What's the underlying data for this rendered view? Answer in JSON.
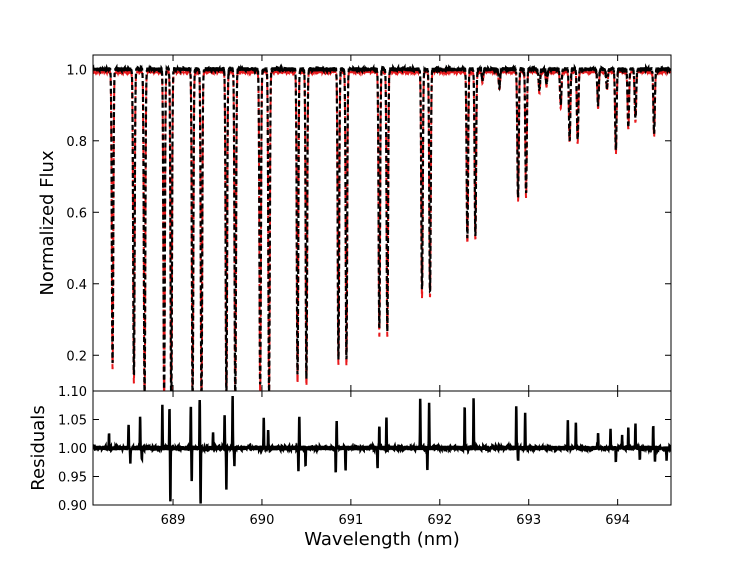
{
  "chart_data": [
    {
      "type": "line",
      "panel": "top",
      "xlabel": "",
      "ylabel": "Normalized Flux",
      "xlim": [
        688.1,
        694.6
      ],
      "ylim": [
        0.1,
        1.04
      ],
      "yticks": [
        1.0,
        0.8,
        0.6,
        0.4,
        0.2
      ],
      "ytick_labels": [
        "1.0",
        "0.8",
        "0.6",
        "0.4",
        "0.2"
      ],
      "grid": false,
      "series": [
        {
          "style": "solid",
          "color": "#000000"
        },
        {
          "style": "dashed",
          "color": "#e8191c"
        }
      ],
      "absorption_lines": [
        {
          "x": 688.32,
          "depth": 0.83
        },
        {
          "x": 688.56,
          "depth": 0.87
        },
        {
          "x": 688.68,
          "depth": 0.92
        },
        {
          "x": 688.9,
          "depth": 0.92
        },
        {
          "x": 688.98,
          "depth": 0.95
        },
        {
          "x": 689.22,
          "depth": 0.93
        },
        {
          "x": 689.32,
          "depth": 0.94
        },
        {
          "x": 689.6,
          "depth": 0.92
        },
        {
          "x": 689.7,
          "depth": 0.94
        },
        {
          "x": 689.98,
          "depth": 0.9
        },
        {
          "x": 690.08,
          "depth": 0.91
        },
        {
          "x": 690.4,
          "depth": 0.87
        },
        {
          "x": 690.5,
          "depth": 0.88
        },
        {
          "x": 690.86,
          "depth": 0.82
        },
        {
          "x": 690.95,
          "depth": 0.82
        },
        {
          "x": 691.32,
          "depth": 0.74
        },
        {
          "x": 691.41,
          "depth": 0.74
        },
        {
          "x": 691.8,
          "depth": 0.63
        },
        {
          "x": 691.89,
          "depth": 0.63
        },
        {
          "x": 692.31,
          "depth": 0.48
        },
        {
          "x": 692.4,
          "depth": 0.47
        },
        {
          "x": 692.88,
          "depth": 0.36
        },
        {
          "x": 692.97,
          "depth": 0.35
        },
        {
          "x": 693.46,
          "depth": 0.2
        },
        {
          "x": 693.55,
          "depth": 0.2
        },
        {
          "x": 693.78,
          "depth": 0.1
        },
        {
          "x": 693.98,
          "depth": 0.23
        },
        {
          "x": 694.12,
          "depth": 0.16
        },
        {
          "x": 694.2,
          "depth": 0.14
        },
        {
          "x": 694.41,
          "depth": 0.18
        },
        {
          "x": 692.67,
          "depth": 0.05
        },
        {
          "x": 692.48,
          "depth": 0.03
        },
        {
          "x": 693.12,
          "depth": 0.06
        },
        {
          "x": 693.2,
          "depth": 0.04
        },
        {
          "x": 693.36,
          "depth": 0.1
        },
        {
          "x": 693.88,
          "depth": 0.05
        }
      ]
    },
    {
      "type": "line",
      "panel": "bottom",
      "xlabel": "Wavelength (nm)",
      "ylabel": "Residuals",
      "xlim": [
        688.1,
        694.6
      ],
      "ylim": [
        0.9,
        1.1
      ],
      "xticks": [
        689,
        690,
        691,
        692,
        693,
        694
      ],
      "xtick_labels": [
        "689",
        "690",
        "691",
        "692",
        "693",
        "694"
      ],
      "yticks": [
        1.1,
        1.05,
        1.0,
        0.95,
        0.9
      ],
      "ytick_labels": [
        "1.10",
        "1.05",
        "1.00",
        "0.95",
        "0.90"
      ],
      "baseline": 1.0,
      "grid": false,
      "series": [
        {
          "style": "solid",
          "color": "#000000"
        }
      ],
      "spikes": [
        {
          "x": 688.28,
          "v": 1.025
        },
        {
          "x": 688.5,
          "v": 1.04
        },
        {
          "x": 688.52,
          "v": 0.975
        },
        {
          "x": 688.63,
          "v": 1.055
        },
        {
          "x": 688.65,
          "v": 0.98
        },
        {
          "x": 688.88,
          "v": 1.075
        },
        {
          "x": 688.96,
          "v": 1.07
        },
        {
          "x": 688.97,
          "v": 0.905
        },
        {
          "x": 689.2,
          "v": 1.075
        },
        {
          "x": 689.21,
          "v": 0.945
        },
        {
          "x": 689.3,
          "v": 1.085
        },
        {
          "x": 689.31,
          "v": 0.9
        },
        {
          "x": 689.45,
          "v": 1.025
        },
        {
          "x": 689.58,
          "v": 1.06
        },
        {
          "x": 689.6,
          "v": 0.93
        },
        {
          "x": 689.67,
          "v": 1.09
        },
        {
          "x": 689.69,
          "v": 0.97
        },
        {
          "x": 690.02,
          "v": 1.05
        },
        {
          "x": 690.07,
          "v": 1.03
        },
        {
          "x": 690.42,
          "v": 1.055
        },
        {
          "x": 690.41,
          "v": 0.96
        },
        {
          "x": 690.49,
          "v": 0.97
        },
        {
          "x": 690.84,
          "v": 1.045
        },
        {
          "x": 690.83,
          "v": 0.955
        },
        {
          "x": 690.94,
          "v": 0.96
        },
        {
          "x": 691.3,
          "v": 0.965
        },
        {
          "x": 691.32,
          "v": 1.04
        },
        {
          "x": 691.4,
          "v": 1.055
        },
        {
          "x": 691.78,
          "v": 1.085
        },
        {
          "x": 691.88,
          "v": 1.08
        },
        {
          "x": 691.86,
          "v": 0.96
        },
        {
          "x": 692.28,
          "v": 1.075
        },
        {
          "x": 692.38,
          "v": 1.085
        },
        {
          "x": 692.86,
          "v": 1.075
        },
        {
          "x": 692.88,
          "v": 0.975
        },
        {
          "x": 692.96,
          "v": 1.06
        },
        {
          "x": 693.44,
          "v": 1.045
        },
        {
          "x": 693.53,
          "v": 1.045
        },
        {
          "x": 693.78,
          "v": 1.025
        },
        {
          "x": 693.92,
          "v": 1.03
        },
        {
          "x": 693.98,
          "v": 0.975
        },
        {
          "x": 694.05,
          "v": 1.02
        },
        {
          "x": 694.12,
          "v": 1.035
        },
        {
          "x": 694.2,
          "v": 1.04
        },
        {
          "x": 694.25,
          "v": 0.98
        },
        {
          "x": 694.4,
          "v": 1.04
        },
        {
          "x": 694.42,
          "v": 0.975
        },
        {
          "x": 694.55,
          "v": 0.98
        }
      ]
    }
  ]
}
